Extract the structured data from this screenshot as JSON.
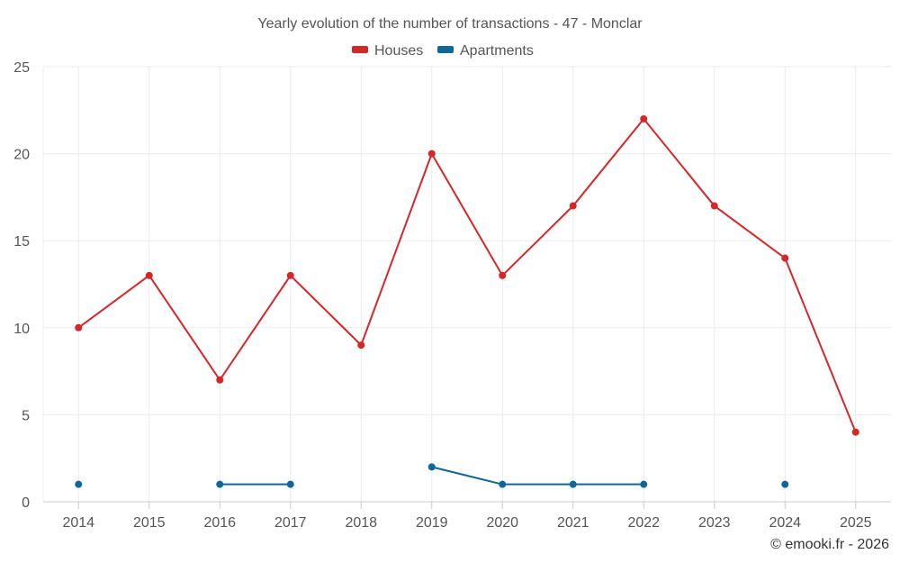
{
  "chart_data": {
    "type": "line",
    "title": "Yearly evolution of the number of transactions - 47 - Monclar",
    "categories": [
      "2014",
      "2015",
      "2016",
      "2017",
      "2018",
      "2019",
      "2020",
      "2021",
      "2022",
      "2023",
      "2024",
      "2025"
    ],
    "ylim": [
      0,
      25
    ],
    "yticks": [
      0,
      5,
      10,
      15,
      20,
      25
    ],
    "xlabel": "",
    "ylabel": "",
    "grid": true,
    "legend": "top-center",
    "series": [
      {
        "name": "Houses",
        "color": "#d62728",
        "values": [
          10,
          13,
          7,
          13,
          9,
          20,
          13,
          17,
          22,
          17,
          14,
          4
        ]
      },
      {
        "name": "Apartments",
        "color": "#0e6796",
        "values": [
          1,
          null,
          1,
          1,
          null,
          2,
          1,
          1,
          1,
          null,
          1,
          null
        ]
      }
    ]
  },
  "copyright": "© emooki.fr - 2026"
}
